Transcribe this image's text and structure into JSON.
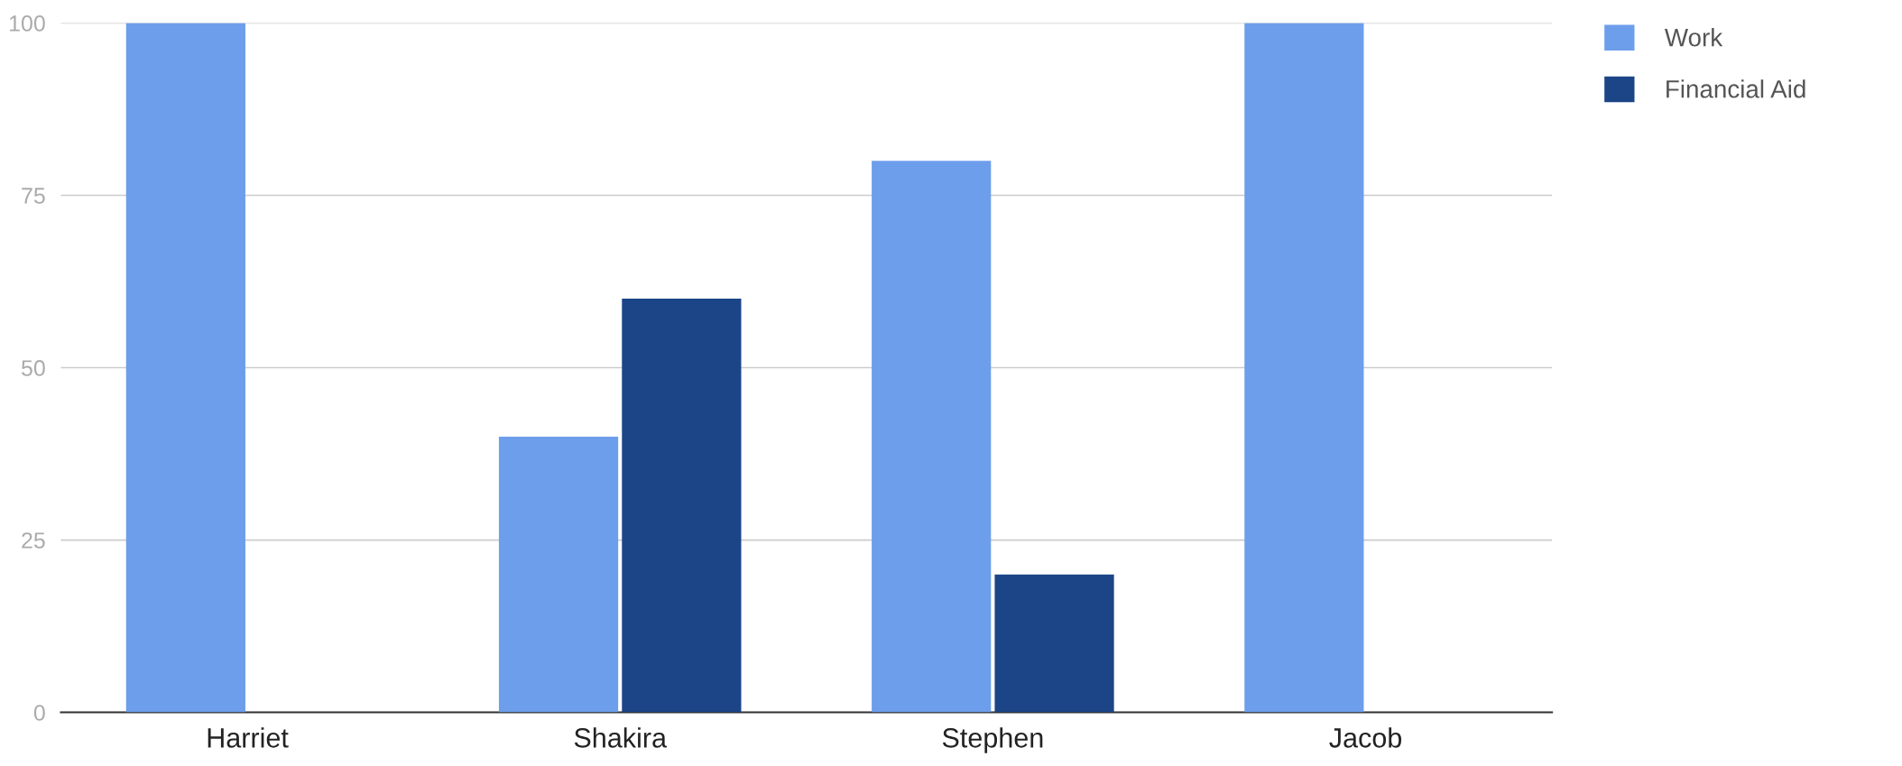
{
  "chart_data": {
    "type": "bar",
    "categories": [
      "Harriet",
      "Shakira",
      "Stephen",
      "Jacob"
    ],
    "series": [
      {
        "name": "Work",
        "color": "#6d9eeb",
        "values": [
          100,
          40,
          80,
          100
        ]
      },
      {
        "name": "Financial Aid",
        "color": "#1c4587",
        "values": [
          0,
          60,
          20,
          0
        ]
      }
    ],
    "ylim": [
      0,
      100
    ],
    "yticks": [
      0,
      25,
      50,
      75,
      100
    ],
    "grid": "y",
    "legend": "top right"
  }
}
